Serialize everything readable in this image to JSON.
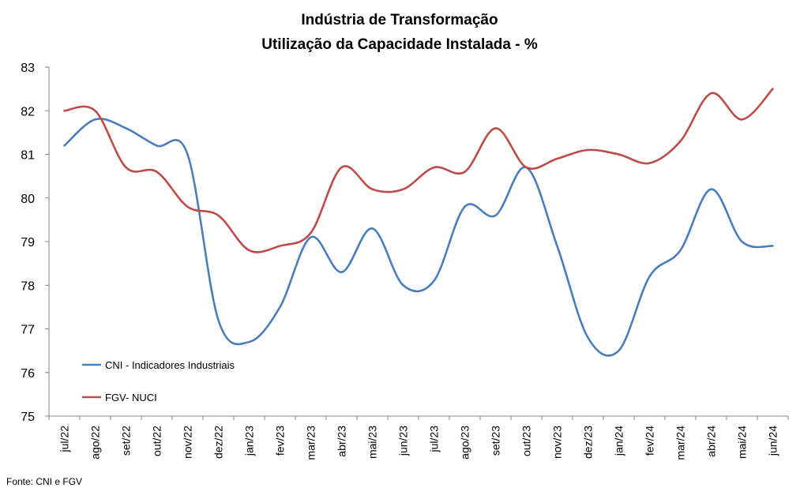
{
  "chart_data": {
    "type": "line",
    "title": "Indústria de Transformação",
    "subtitle": "Utilização da Capacidade Instalada - %",
    "xlabel": "",
    "ylabel": "",
    "ylim": [
      75,
      83
    ],
    "yticks": [
      75,
      76,
      77,
      78,
      79,
      80,
      81,
      82,
      83
    ],
    "categories": [
      "jul/22",
      "ago/22",
      "set/22",
      "out/22",
      "nov/22",
      "dez/22",
      "jan/23",
      "fev/23",
      "mar/23",
      "abr/23",
      "mai/23",
      "jun/23",
      "jul/23",
      "ago/23",
      "set/23",
      "out/23",
      "nov/23",
      "dez/23",
      "jan/24",
      "fev/24",
      "mar/24",
      "abr/24",
      "mai/24",
      "jun/24"
    ],
    "series": [
      {
        "name": "CNI - Indicadores Industriais",
        "color": "#4a7ebb",
        "values": [
          81.2,
          81.8,
          81.6,
          81.2,
          81.0,
          77.2,
          76.7,
          77.5,
          79.1,
          78.3,
          79.3,
          78.0,
          78.1,
          79.8,
          79.6,
          80.7,
          78.9,
          76.8,
          76.5,
          78.2,
          78.8,
          80.2,
          79.0,
          78.9
        ]
      },
      {
        "name": "FGV- NUCI",
        "color": "#be4b48",
        "values": [
          82.0,
          82.0,
          80.7,
          80.6,
          79.8,
          79.6,
          78.8,
          78.9,
          79.2,
          80.7,
          80.2,
          80.2,
          80.7,
          80.6,
          81.6,
          80.7,
          80.9,
          81.1,
          81.0,
          80.8,
          81.3,
          82.4,
          81.8,
          82.5
        ]
      }
    ],
    "grid": false,
    "legend_position": "bottom-left"
  },
  "source": "Fonte: CNI e FGV"
}
